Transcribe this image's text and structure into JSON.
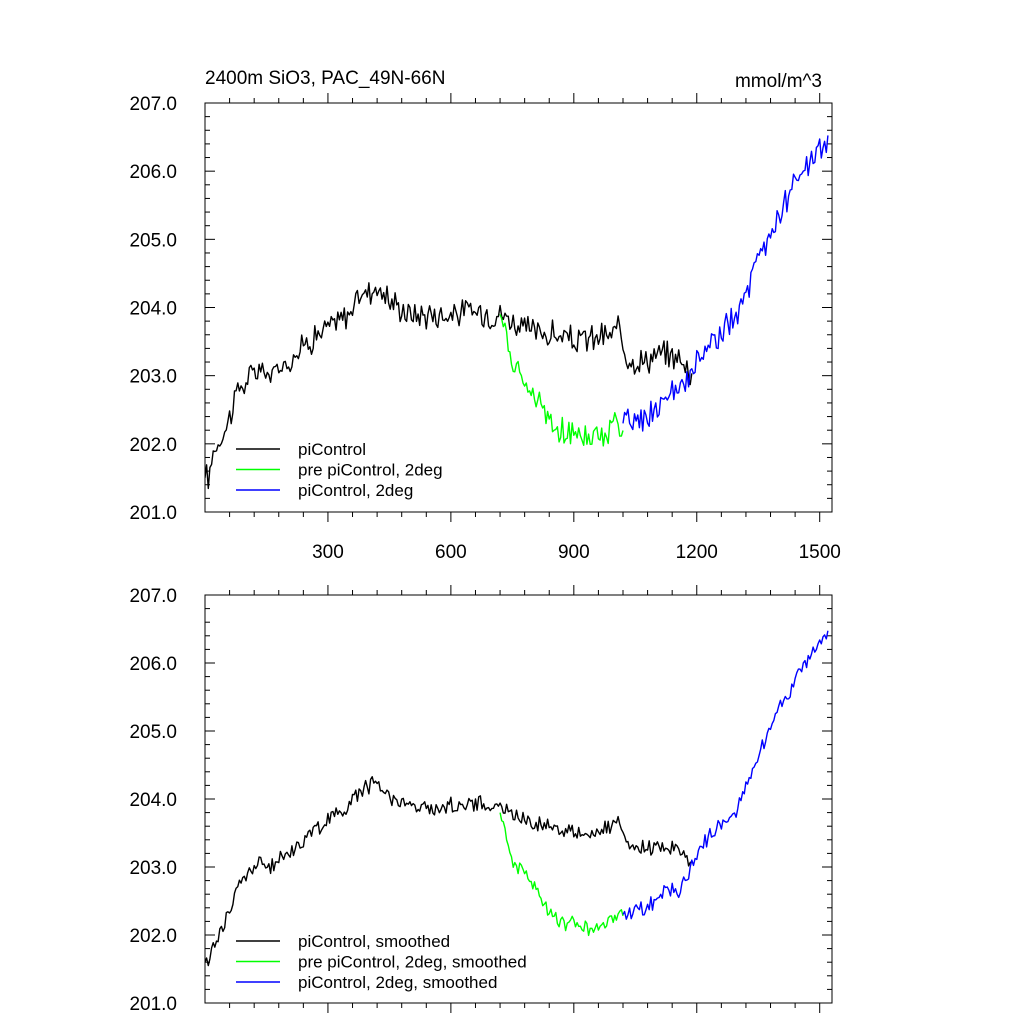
{
  "chart_data": [
    {
      "type": "line",
      "title": "2400m SiO3, PAC_49N-66N",
      "units": "mmol/m^3",
      "xlabel": "",
      "ylabel": "",
      "xlim": [
        0,
        1530
      ],
      "ylim": [
        201.0,
        207.0
      ],
      "xticks": [
        300,
        600,
        900,
        1200,
        1500
      ],
      "xtick_labels": [
        "300",
        "600",
        "900",
        "1200",
        "1500"
      ],
      "yticks": [
        201.0,
        202.0,
        203.0,
        204.0,
        205.0,
        206.0,
        207.0
      ],
      "ytick_labels": [
        "201.0",
        "202.0",
        "203.0",
        "204.0",
        "205.0",
        "206.0",
        "207.0"
      ],
      "legend_position": "bottom-left",
      "series": [
        {
          "name": "piControl",
          "color": "#000000",
          "x": [
            0,
            10,
            20,
            40,
            60,
            80,
            100,
            130,
            160,
            200,
            250,
            300,
            350,
            380,
            420,
            450,
            500,
            550,
            600,
            650,
            700,
            730,
            760,
            800,
            850,
            900,
            950,
            1000,
            1010,
            1030,
            1060,
            1100,
            1150,
            1190
          ],
          "y": [
            201.5,
            201.5,
            201.9,
            202.1,
            202.4,
            202.8,
            202.9,
            203.1,
            203.0,
            203.2,
            203.5,
            203.7,
            203.9,
            204.2,
            204.3,
            204.1,
            203.9,
            203.9,
            203.9,
            203.95,
            203.9,
            203.9,
            203.75,
            203.65,
            203.6,
            203.5,
            203.55,
            203.6,
            203.7,
            203.3,
            203.2,
            203.3,
            203.3,
            203.0
          ]
        },
        {
          "name": "pre piControl, 2deg",
          "color": "#00ff00",
          "x": [
            720,
            730,
            740,
            750,
            770,
            800,
            820,
            840,
            860,
            880,
            900,
            920,
            940,
            960,
            980,
            1000,
            1020
          ],
          "y": [
            203.9,
            203.7,
            203.4,
            203.1,
            203.0,
            202.8,
            202.5,
            202.3,
            202.2,
            202.15,
            202.15,
            202.15,
            202.05,
            202.1,
            202.2,
            202.3,
            202.3
          ]
        },
        {
          "name": "piControl, 2deg",
          "color": "#0000ff",
          "x": [
            1020,
            1050,
            1080,
            1100,
            1130,
            1160,
            1180,
            1200,
            1230,
            1260,
            1300,
            1320,
            1340,
            1360,
            1380,
            1400,
            1420,
            1440,
            1460,
            1480,
            1500,
            1520
          ],
          "y": [
            202.3,
            202.35,
            202.4,
            202.5,
            202.7,
            202.75,
            202.9,
            203.2,
            203.45,
            203.6,
            203.9,
            204.2,
            204.5,
            204.8,
            205.1,
            205.35,
            205.6,
            205.8,
            205.95,
            206.15,
            206.35,
            206.4
          ]
        }
      ]
    },
    {
      "type": "line",
      "title": "",
      "xlabel": "",
      "ylabel": "",
      "xlim": [
        0,
        1530
      ],
      "ylim": [
        201.0,
        207.0
      ],
      "xticks": [
        300,
        600,
        900,
        1200,
        1500
      ],
      "yticks": [
        201.0,
        202.0,
        203.0,
        204.0,
        205.0,
        206.0,
        207.0
      ],
      "ytick_labels": [
        "201.0",
        "202.0",
        "203.0",
        "204.0",
        "205.0",
        "206.0",
        "207.0"
      ],
      "legend_position": "bottom-left",
      "series": [
        {
          "name": "piControl, smoothed",
          "color": "#000000",
          "x": [
            0,
            10,
            20,
            40,
            60,
            80,
            100,
            130,
            160,
            200,
            250,
            300,
            350,
            380,
            420,
            450,
            500,
            550,
            600,
            650,
            700,
            730,
            760,
            800,
            850,
            900,
            950,
            1000,
            1010,
            1030,
            1060,
            1100,
            1150,
            1190
          ],
          "y": [
            201.6,
            201.6,
            201.85,
            202.1,
            202.35,
            202.7,
            202.9,
            203.05,
            203.0,
            203.2,
            203.45,
            203.7,
            203.9,
            204.15,
            204.25,
            204.05,
            203.9,
            203.85,
            203.9,
            203.95,
            203.9,
            203.85,
            203.75,
            203.65,
            203.6,
            203.5,
            203.5,
            203.6,
            203.65,
            203.3,
            203.25,
            203.3,
            203.3,
            203.0
          ]
        },
        {
          "name": "pre piControl, 2deg, smoothed",
          "color": "#00ff00",
          "x": [
            720,
            730,
            740,
            750,
            770,
            800,
            820,
            840,
            860,
            880,
            900,
            920,
            940,
            960,
            980,
            1000,
            1020
          ],
          "y": [
            203.8,
            203.6,
            203.3,
            203.1,
            203.0,
            202.8,
            202.5,
            202.3,
            202.2,
            202.15,
            202.15,
            202.15,
            202.05,
            202.1,
            202.2,
            202.3,
            202.3
          ]
        },
        {
          "name": "piControl, 2deg, smoothed",
          "color": "#0000ff",
          "x": [
            1020,
            1050,
            1080,
            1100,
            1130,
            1160,
            1180,
            1200,
            1230,
            1260,
            1300,
            1320,
            1340,
            1360,
            1380,
            1400,
            1420,
            1440,
            1460,
            1480,
            1500,
            1520
          ],
          "y": [
            202.3,
            202.35,
            202.4,
            202.5,
            202.7,
            202.6,
            202.9,
            203.2,
            203.45,
            203.6,
            203.85,
            204.2,
            204.5,
            204.8,
            205.1,
            205.35,
            205.5,
            205.75,
            205.95,
            206.15,
            206.35,
            206.4
          ]
        }
      ]
    }
  ]
}
